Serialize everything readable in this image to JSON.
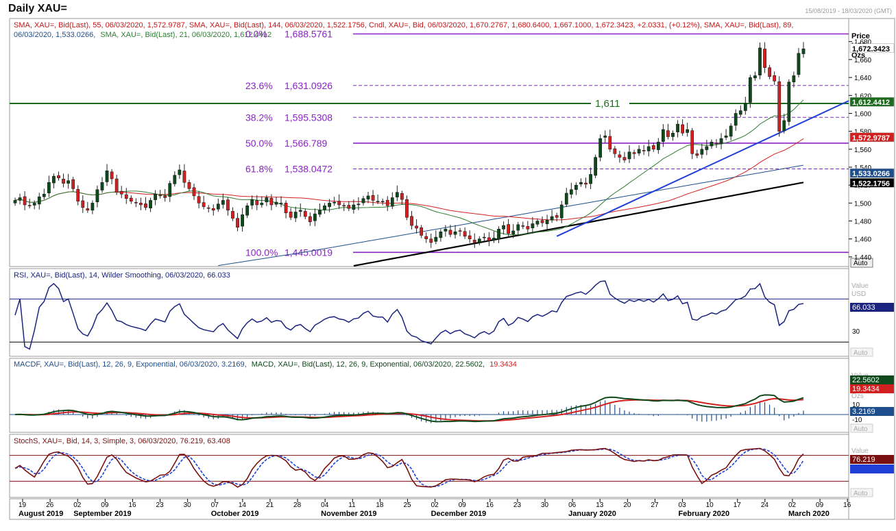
{
  "window": {
    "title": "Daily XAU=",
    "range": "15/08/2019 - 18/03/2020 (GMT)"
  },
  "colors": {
    "up": "#0f4a1c",
    "down": "#d21f1f",
    "sma144": "#000000",
    "sma89": "#1f4e8c",
    "sma55": "#d21f1f",
    "sma21": "#2e7d32",
    "fib": "#8b22c8",
    "trend": "#1f3fd6",
    "support": "#1e6a1e",
    "rsi": "#1a237e",
    "macd": "#0f4a1c",
    "signal": "#d21f1f",
    "stoch_k": "#7a1010",
    "stoch_d": "#1f3fd6"
  },
  "main_panel": {
    "legend_red": "SMA, XAU=, Bid(Last), 55, 06/03/2020, 1,572.9787, SMA, XAU=, Bid(Last), 144, 06/03/2020, 1,522.1756, Cndl, XAU=, Bid, 06/03/2020, 1,670.2767, 1,680.6400, 1,667.1000, 1,672.3423, +2.0331, (+0.12%), SMA, XAU=, Bid(Last), 89,",
    "legend_line2_blue": "06/03/2020, 1,533.0266,",
    "legend_line2_green": "SMA, XAU=, Bid(Last), 21, 06/03/2020, 1,612.4412",
    "axis_unit_1": "Price",
    "axis_unit_2": "USD",
    "axis_unit_3": "Ozs",
    "axis_button": "Auto",
    "support_label": "1,611",
    "badges": [
      {
        "text": "1,672.3423",
        "value": 1672.3423,
        "bg": "#ffffff",
        "fg": "#000000"
      },
      {
        "text": "1,612.4412",
        "value": 1612.4412,
        "bg": "#1e6a1e",
        "fg": "#ffffff"
      },
      {
        "text": "1,572.9787",
        "value": 1572.9787,
        "bg": "#d21f1f",
        "fg": "#ffffff"
      },
      {
        "text": "1,533.0266",
        "value": 1533.0266,
        "bg": "#1f4e8c",
        "fg": "#ffffff"
      },
      {
        "text": "1,522.1756",
        "value": 1522.1756,
        "bg": "#000000",
        "fg": "#ffffff"
      }
    ]
  },
  "rsi_panel": {
    "legend": "RSI, XAU=, Bid(Last), 14, Wilder Smoothing, 06/03/2020, 66.033",
    "unit_1": "Value",
    "unit_2": "USD",
    "badge": "66.033",
    "tick": "30",
    "button": "Auto"
  },
  "macd_panel": {
    "legend_blue": "MACDF, XAU=, Bid(Last), 12, 26, 9, Exponential, 06/03/2020, 3.2169,",
    "legend_green": "MACD, XAU=, Bid(Last), 12, 26, 9, Exponential, 06/03/2020, 22.5602,",
    "legend_red": "19.3434",
    "unit_1": "Value",
    "unit_2": "Ozs",
    "badges": [
      "22.5602",
      "19.3434",
      "3.2169"
    ],
    "ticks": [
      "10",
      "-10"
    ],
    "button": "Auto"
  },
  "stoch_panel": {
    "legend": "StochS, XAU=, Bid, 14, 3, Simple, 3, 06/03/2020, 76.219, 63.408",
    "unit_1": "Value",
    "badge": "76.219",
    "button": "Auto"
  },
  "chart_data": {
    "type": "candlestick",
    "title": "Daily XAU=",
    "ylabel": "Price USD Ozs",
    "ylim": [
      1430,
      1705
    ],
    "yticks": [
      1440,
      1460,
      1480,
      1500,
      1520,
      1540,
      1560,
      1580,
      1600,
      1620,
      1640,
      1660,
      1680
    ],
    "ytick_labels": [
      "1,440",
      "1,460",
      "1,480",
      "1,500",
      "1,520",
      "1,540",
      "1,560",
      "1,580",
      "1,600",
      "1,620",
      "1,640",
      "1,660",
      "1,680"
    ],
    "x_day_labels": [
      "19",
      "26",
      "02",
      "09",
      "16",
      "23",
      "30",
      "07",
      "14",
      "21",
      "28",
      "04",
      "11",
      "18",
      "25",
      "02",
      "09",
      "16",
      "23",
      "30",
      "06",
      "13",
      "20",
      "27",
      "03",
      "10",
      "17",
      "24",
      "02",
      "09",
      "16"
    ],
    "x_month_labels": [
      {
        "text": "August 2019",
        "index": 0
      },
      {
        "text": "September 2019",
        "index": 2
      },
      {
        "text": "October 2019",
        "index": 7
      },
      {
        "text": "November 2019",
        "index": 11
      },
      {
        "text": "December 2019",
        "index": 15
      },
      {
        "text": "January 2020",
        "index": 20
      },
      {
        "text": "February 2020",
        "index": 24
      },
      {
        "text": "March 2020",
        "index": 28
      }
    ],
    "fib_levels": [
      {
        "pct": "0.0%",
        "value": 1688.5761,
        "label": "1,688.5761"
      },
      {
        "pct": "23.6%",
        "value": 1631.0926,
        "label": "1,631.0926"
      },
      {
        "pct": "38.2%",
        "value": 1595.5308,
        "label": "1,595.5308"
      },
      {
        "pct": "50.0%",
        "value": 1566.789,
        "label": "1,566.789"
      },
      {
        "pct": "61.8%",
        "value": 1538.0472,
        "label": "1,538.0472"
      },
      {
        "pct": "100.0%",
        "value": 1445.0019,
        "label": "1,445.0019"
      }
    ],
    "support_level": 1611,
    "close": [
      1503,
      1506,
      1498,
      1497,
      1500,
      1507,
      1510,
      1523,
      1530,
      1528,
      1522,
      1525,
      1516,
      1502,
      1495,
      1492,
      1500,
      1515,
      1523,
      1536,
      1527,
      1512,
      1510,
      1505,
      1502,
      1500,
      1498,
      1495,
      1503,
      1510,
      1508,
      1506,
      1522,
      1531,
      1537,
      1523,
      1516,
      1508,
      1500,
      1496,
      1494,
      1492,
      1499,
      1503,
      1492,
      1483,
      1473,
      1487,
      1497,
      1504,
      1498,
      1500,
      1506,
      1498,
      1501,
      1500,
      1489,
      1484,
      1490,
      1492,
      1485,
      1479,
      1488,
      1492,
      1497,
      1500,
      1501,
      1498,
      1497,
      1494,
      1498,
      1499,
      1505,
      1508,
      1503,
      1502,
      1502,
      1497,
      1506,
      1512,
      1504,
      1484,
      1475,
      1472,
      1464,
      1460,
      1456,
      1462,
      1468,
      1471,
      1465,
      1468,
      1469,
      1463,
      1460,
      1456,
      1460,
      1462,
      1458,
      1461,
      1471,
      1475,
      1466,
      1469,
      1476,
      1474,
      1471,
      1477,
      1480,
      1478,
      1481,
      1485,
      1484,
      1498,
      1511,
      1515,
      1520,
      1523,
      1521,
      1532,
      1551,
      1572,
      1575,
      1560,
      1555,
      1551,
      1548,
      1557,
      1555,
      1560,
      1558,
      1563,
      1560,
      1568,
      1582,
      1574,
      1578,
      1588,
      1578,
      1582,
      1555,
      1553,
      1560,
      1563,
      1568,
      1566,
      1572,
      1575,
      1586,
      1600,
      1603,
      1611,
      1640,
      1642,
      1673,
      1651,
      1641,
      1636,
      1580,
      1592,
      1635,
      1642,
      1667,
      1672
    ]
  }
}
